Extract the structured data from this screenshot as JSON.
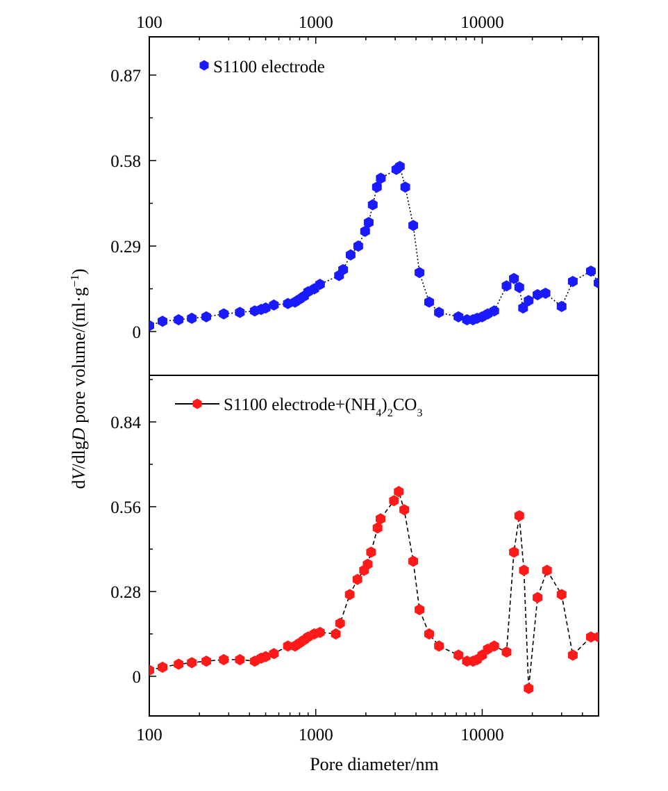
{
  "chart_data": [
    {
      "type": "scatter",
      "xscale": "log",
      "xlim": [
        100,
        50000
      ],
      "ylim": [
        -0.13,
        0.98
      ],
      "x_ticks": [
        "100",
        "1000",
        "10000"
      ],
      "y_ticks": [
        "0",
        "0.29",
        "0.58",
        "0.87"
      ],
      "y_tick_values": [
        0,
        0.29,
        0.58,
        0.87
      ],
      "legend_placement": "top-left",
      "series": [
        {
          "name": "S1100 electrode",
          "color": "#1a1aff",
          "marker": "hexagon",
          "line": "dotted",
          "x": [
            100,
            120,
            150,
            180,
            220,
            280,
            350,
            430,
            470,
            500,
            560,
            680,
            750,
            800,
            850,
            900,
            980,
            1060,
            1380,
            1460,
            1620,
            1800,
            1980,
            2080,
            2200,
            2330,
            2460,
            3050,
            3200,
            3450,
            3850,
            4200,
            4800,
            5500,
            7200,
            8100,
            8800,
            9300,
            10000,
            10800,
            11800,
            14000,
            15500,
            16700,
            17600,
            19000,
            21500,
            24000,
            30000,
            35000,
            45000,
            50000
          ],
          "y": [
            0.02,
            0.035,
            0.04,
            0.045,
            0.05,
            0.06,
            0.065,
            0.07,
            0.075,
            0.08,
            0.09,
            0.095,
            0.1,
            0.11,
            0.12,
            0.135,
            0.145,
            0.16,
            0.19,
            0.21,
            0.26,
            0.29,
            0.34,
            0.37,
            0.43,
            0.49,
            0.52,
            0.55,
            0.56,
            0.49,
            0.36,
            0.2,
            0.1,
            0.065,
            0.05,
            0.04,
            0.04,
            0.045,
            0.05,
            0.06,
            0.07,
            0.155,
            0.18,
            0.15,
            0.08,
            0.105,
            0.125,
            0.13,
            0.085,
            0.17,
            0.205,
            0.165
          ]
        }
      ]
    },
    {
      "type": "scatter",
      "xscale": "log",
      "xlim": [
        100,
        50000
      ],
      "ylim": [
        -0.13,
        0.98
      ],
      "x_ticks": [
        "100",
        "1000",
        "10000"
      ],
      "y_ticks": [
        "0",
        "0.28",
        "0.56",
        "0.84"
      ],
      "y_tick_values": [
        0,
        0.28,
        0.56,
        0.84
      ],
      "xlabel": "Pore diameter/nm",
      "legend_placement": "top-left",
      "series": [
        {
          "name": "S1100 electrode+(NH4)2CO3",
          "color": "#ff1a1a",
          "marker": "hexagon",
          "line": "dashed",
          "x": [
            100,
            120,
            150,
            180,
            220,
            280,
            350,
            430,
            470,
            500,
            560,
            680,
            750,
            800,
            850,
            900,
            980,
            1060,
            1320,
            1400,
            1600,
            1780,
            1950,
            2050,
            2150,
            2350,
            2450,
            2950,
            3150,
            3400,
            3850,
            4200,
            4800,
            5500,
            7200,
            8100,
            8800,
            9300,
            10000,
            10800,
            11800,
            14000,
            15500,
            16700,
            17800,
            19000,
            21500,
            24500,
            30000,
            35000,
            45000,
            50000
          ],
          "y": [
            0.02,
            0.03,
            0.04,
            0.045,
            0.05,
            0.055,
            0.055,
            0.05,
            0.06,
            0.065,
            0.075,
            0.1,
            0.1,
            0.11,
            0.12,
            0.13,
            0.14,
            0.145,
            0.14,
            0.175,
            0.27,
            0.32,
            0.35,
            0.37,
            0.41,
            0.49,
            0.52,
            0.58,
            0.61,
            0.55,
            0.38,
            0.22,
            0.14,
            0.1,
            0.07,
            0.05,
            0.05,
            0.055,
            0.07,
            0.09,
            0.1,
            0.08,
            0.41,
            0.53,
            0.35,
            -0.04,
            0.26,
            0.35,
            0.27,
            0.07,
            0.13,
            0.13
          ]
        }
      ]
    }
  ],
  "shared_ylabel_parts": [
    "d",
    "V",
    "/dlg",
    "D",
    " pore volume/(ml·g",
    "−1",
    ")"
  ],
  "legend_texts": {
    "panel1": "S1100 electrode",
    "panel2_main": "S1100 electrode+(NH",
    "panel2_sub1": "4",
    "panel2_close": ")",
    "panel2_sub2": "2",
    "panel2_co": "CO",
    "panel2_sub3": "3"
  }
}
